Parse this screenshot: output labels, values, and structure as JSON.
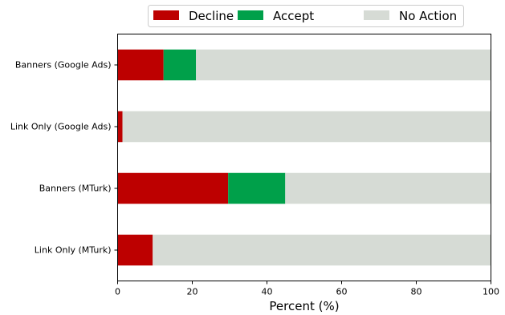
{
  "chart_data": {
    "type": "bar",
    "orientation": "horizontal",
    "stacked": true,
    "categories": [
      "Banners (Google Ads)",
      "Link Only (Google Ads)",
      "Banners (MTurk)",
      "Link Only (MTurk)"
    ],
    "series": [
      {
        "name": "Decline",
        "color": "#bd0000",
        "values": [
          12.3,
          1.3,
          29.6,
          9.4
        ]
      },
      {
        "name": "Accept",
        "color": "#00a04a",
        "values": [
          8.7,
          0.0,
          15.3,
          0.0
        ]
      },
      {
        "name": "No Action",
        "color": "#d6dbd5",
        "values": [
          79.0,
          98.7,
          55.1,
          90.6
        ]
      }
    ],
    "xlabel": "Percent (%)",
    "ylabel": "",
    "xlim": [
      0,
      100
    ],
    "xticks": [
      "0",
      "20",
      "40",
      "60",
      "80",
      "100"
    ],
    "grid": false,
    "legend": {
      "placement": "top-center",
      "entries": [
        "Decline",
        "Accept",
        "No Action"
      ]
    }
  }
}
